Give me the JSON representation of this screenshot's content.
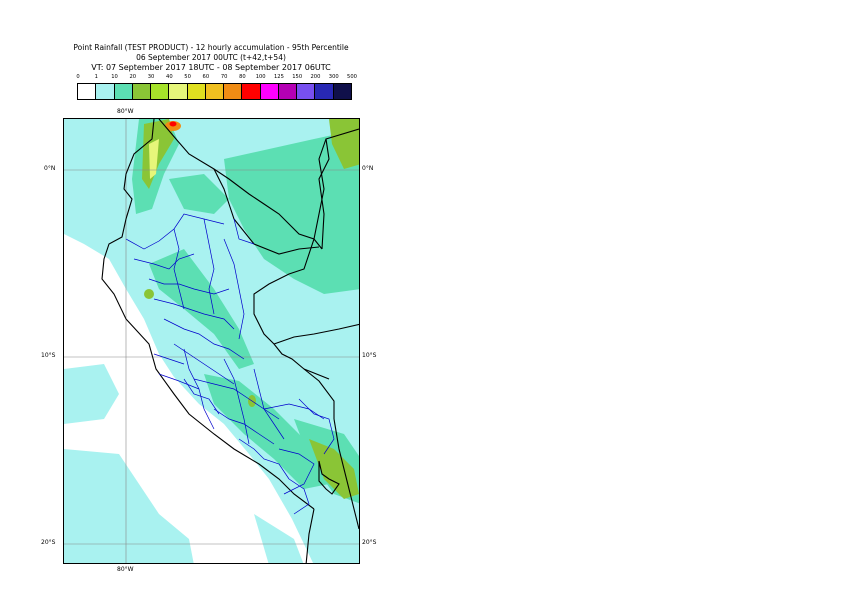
{
  "header": {
    "line1": "Point Rainfall (TEST PRODUCT) - 12 hourly accumulation - 95th Percentile",
    "line2": "06 September 2017 00UTC (t+42,t+54)",
    "line3": "VT: 07 September 2017 18UTC - 08 September 2017 06UTC"
  },
  "legend": {
    "thresholds": [
      "0",
      "1",
      "10",
      "20",
      "30",
      "40",
      "50",
      "60",
      "70",
      "80",
      "100",
      "125",
      "150",
      "200",
      "300",
      "500"
    ],
    "colors": [
      "#ffffff",
      "#a9f2f0",
      "#5cdfb3",
      "#8ac536",
      "#a6e22a",
      "#e6f67a",
      "#e0e020",
      "#f0c020",
      "#f08c14",
      "#ff0000",
      "#ff00ff",
      "#b400b4",
      "#7850f0",
      "#2828b4",
      "#10104a"
    ]
  },
  "map": {
    "lat_labels": [
      "0°N",
      "10°S",
      "20°S"
    ],
    "lon_label": "80°W",
    "colors": {
      "sea": "#ffffff",
      "light": "#a9f2f0",
      "medium": "#5cdfb3",
      "green": "#8ac536",
      "yellow": "#e6f67a",
      "orange": "#f08c14",
      "red": "#ff0000",
      "country_border": "#000000",
      "region_border": "#0000cc",
      "grid": "#888888"
    }
  }
}
